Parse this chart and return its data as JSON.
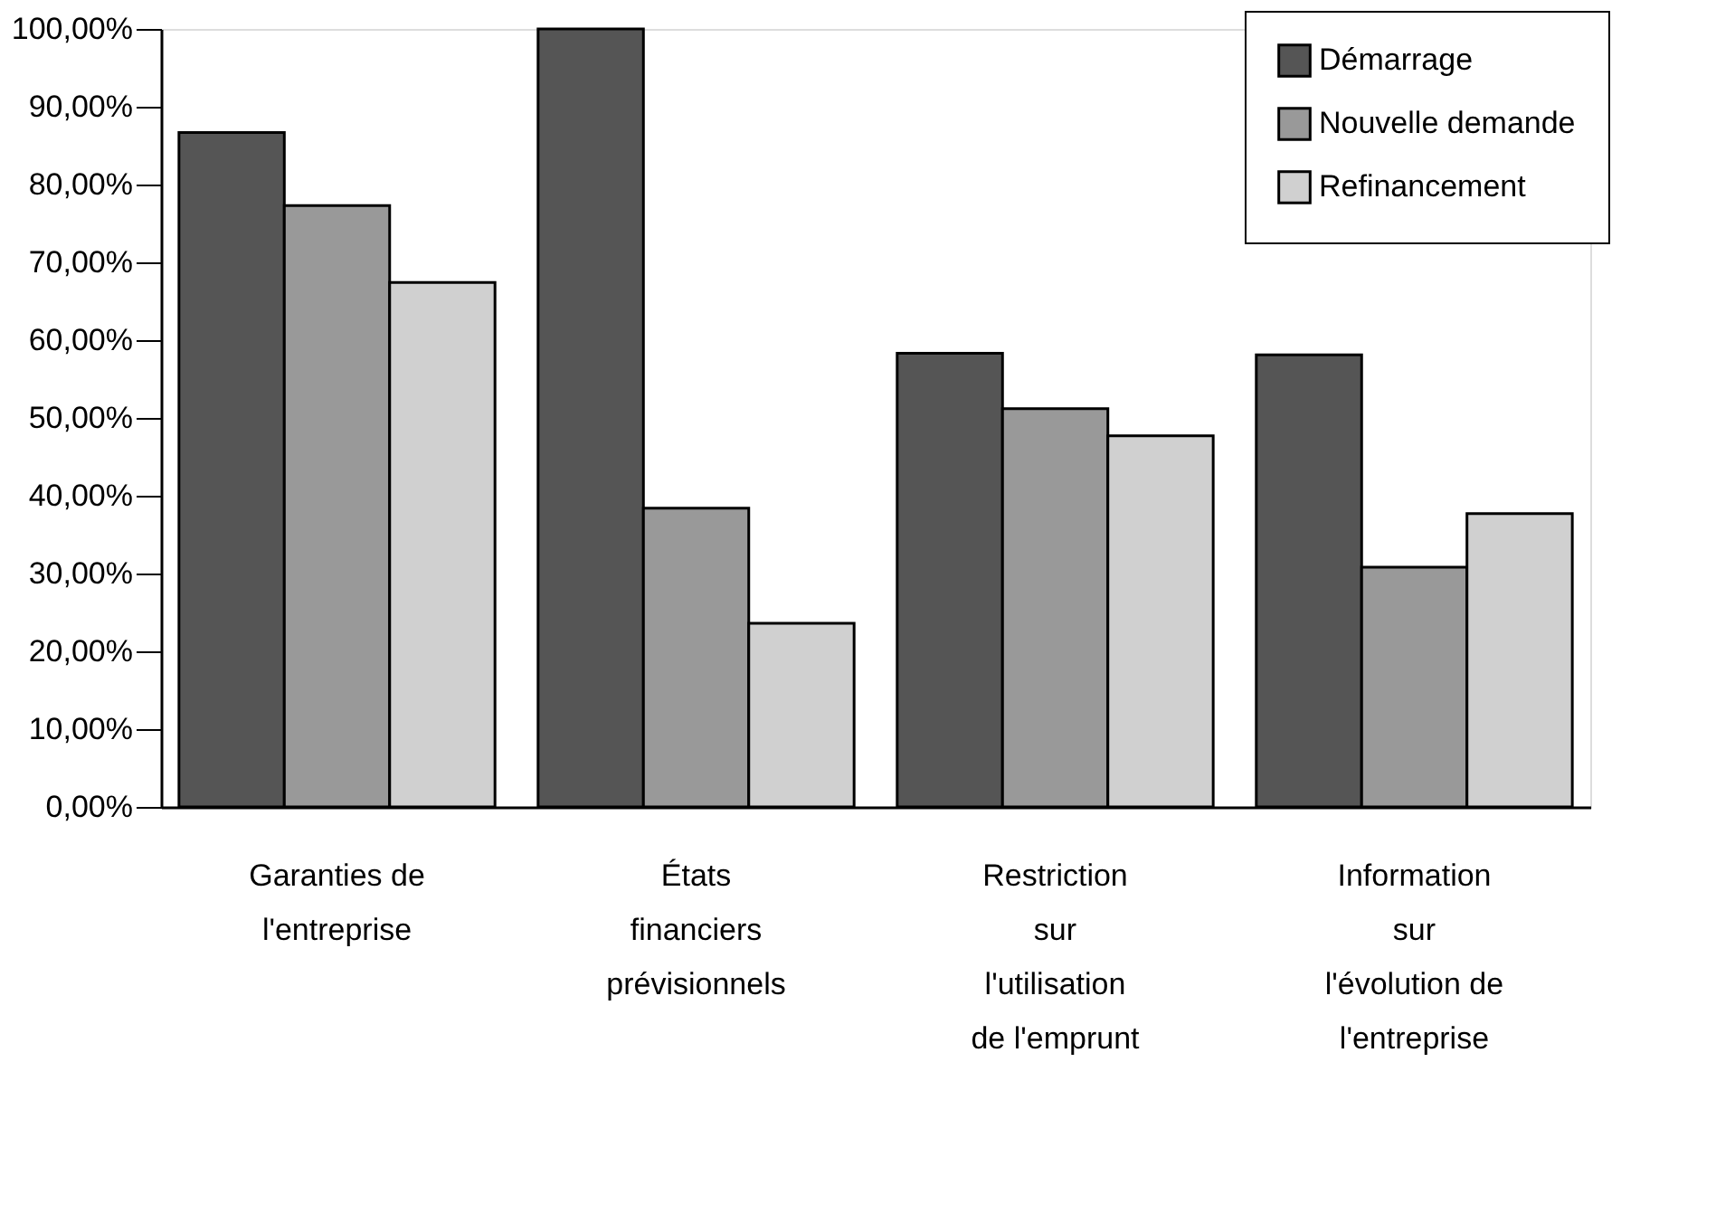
{
  "chart_data": {
    "type": "bar",
    "categories": [
      "Garanties de l'entreprise",
      "États financiers prévisionnels",
      "Restriction sur l'utilisation de l'emprunt",
      "Information sur l'évolution de l'entreprise"
    ],
    "series": [
      {
        "name": "Démarrage",
        "color": "#555555",
        "values": [
          86.7,
          100,
          58.3,
          58.1
        ]
      },
      {
        "name": "Nouvelle demande",
        "color": "#999999",
        "values": [
          77.3,
          38.4,
          51.2,
          30.8
        ]
      },
      {
        "name": "Refinancement",
        "color": "#d0d0d0",
        "values": [
          67.4,
          23.6,
          47.7,
          37.7
        ]
      }
    ],
    "ylim": [
      0,
      100
    ],
    "yticks": [
      {
        "value": 0,
        "label": "0,00%"
      },
      {
        "value": 10,
        "label": "10,00%"
      },
      {
        "value": 20,
        "label": "20,00%"
      },
      {
        "value": 30,
        "label": "30,00%"
      },
      {
        "value": 40,
        "label": "40,00%"
      },
      {
        "value": 50,
        "label": "50,00%"
      },
      {
        "value": 60,
        "label": "60,00%"
      },
      {
        "value": 70,
        "label": "70,00%"
      },
      {
        "value": 80,
        "label": "80,00%"
      },
      {
        "value": 90,
        "label": "90,00%"
      },
      {
        "value": 100,
        "label": "100,00%"
      }
    ],
    "grid": false,
    "legend": "top right"
  }
}
